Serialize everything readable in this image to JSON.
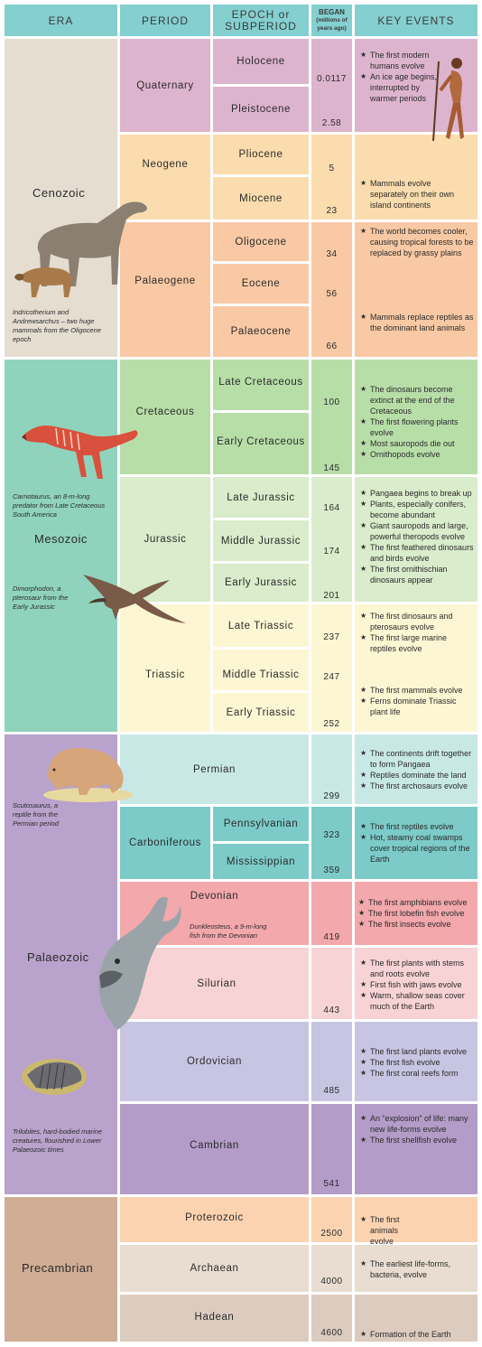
{
  "header": {
    "era": "ERA",
    "period": "PERIOD",
    "epoch_line1": "EPOCH or",
    "epoch_line2": "SUBPERIOD",
    "began_line1": "BEGAN",
    "began_line2": "(millions of",
    "began_line3": "years ago)",
    "events": "KEY EVENTS"
  },
  "eras": {
    "cenozoic": "Cenozoic",
    "mesozoic": "Mesozoic",
    "palaeozoic": "Palaeozoic",
    "precambrian": "Precambrian"
  },
  "periods": {
    "quaternary": "Quaternary",
    "neogene": "Neogene",
    "palaeogene": "Palaeogene",
    "cretaceous": "Cretaceous",
    "jurassic": "Jurassic",
    "triassic": "Triassic",
    "permian": "Permian",
    "carboniferous": "Carboniferous",
    "devonian": "Devonian",
    "silurian": "Silurian",
    "ordovician": "Ordovician",
    "cambrian": "Cambrian",
    "proterozoic": "Proterozoic",
    "archaean": "Archaean",
    "hadean": "Hadean"
  },
  "epochs": {
    "holocene": "Holocene",
    "pleistocene": "Pleistocene",
    "pliocene": "Pliocene",
    "miocene": "Miocene",
    "oligocene": "Oligocene",
    "eocene": "Eocene",
    "palaeocene": "Palaeocene",
    "late_cretaceous": "Late Cretaceous",
    "early_cretaceous": "Early Cretaceous",
    "late_jurassic": "Late Jurassic",
    "middle_jurassic": "Middle Jurassic",
    "early_jurassic": "Early Jurassic",
    "late_triassic": "Late Triassic",
    "middle_triassic": "Middle Triassic",
    "early_triassic": "Early Triassic",
    "pennsylvanian": "Pennsylvanian",
    "mississippian": "Mississippian"
  },
  "began": {
    "holocene": "0.0117",
    "pleistocene": "2.58",
    "pliocene": "5",
    "miocene": "23",
    "oligocene": "34",
    "eocene": "56",
    "palaeocene": "66",
    "late_cretaceous": "100",
    "early_cretaceous": "145",
    "late_jurassic": "164",
    "middle_jurassic": "174",
    "early_jurassic": "201",
    "late_triassic": "237",
    "middle_triassic": "247",
    "early_triassic": "252",
    "permian": "299",
    "pennsylvanian": "323",
    "mississippian": "359",
    "devonian": "419",
    "silurian": "443",
    "ordovician": "485",
    "cambrian": "541",
    "proterozoic": "2500",
    "archaean": "4000",
    "hadean": "4600"
  },
  "events": {
    "quaternary": [
      "The first modern humans evolve",
      "An ice age begins, interrupted by warmer periods"
    ],
    "neogene": [
      "Mammals evolve separately on their own island continents"
    ],
    "oligocene": [
      "The world becomes cooler, causing tropical forests to be replaced by grassy plains"
    ],
    "palaeocene": [
      "Mammals replace reptiles as the dominant land animals"
    ],
    "cretaceous": [
      "The dinosaurs become extinct at the end of the Cretaceous",
      "The first flowering plants evolve",
      "Most sauropods die out",
      "Ornithopods evolve"
    ],
    "jurassic": [
      "Pangaea begins to break up",
      "Plants, especially conifers, become abundant",
      "Giant sauropods and large, powerful theropods evolve",
      "The first feathered dinosaurs and birds evolve",
      "The first ornithischian dinosaurs appear"
    ],
    "late_triassic": [
      "The first dinosaurs and pterosaurs evolve",
      "The first large marine reptiles evolve"
    ],
    "early_triassic": [
      "The first mammals evolve",
      "Ferns dominate Triassic plant life"
    ],
    "permian": [
      "The continents drift together to form Pangaea",
      "Reptiles dominate the land",
      "The first archosaurs evolve"
    ],
    "carboniferous": [
      "The first reptiles evolve",
      "Hot, steamy coal swamps cover tropical regions of the Earth"
    ],
    "devonian": [
      "The first amphibians evolve",
      "The first lobefin fish evolve",
      "The first insects evolve"
    ],
    "silurian": [
      "The first plants with stems and roots evolve",
      "First fish with jaws evolve",
      "Warm, shallow seas cover much of the Earth"
    ],
    "ordovician": [
      "The first land plants evolve",
      "The first fish evolve",
      "The first coral reefs form"
    ],
    "cambrian": [
      "An “explosion” of life: many new life-forms evolve",
      "The first shellfish evolve"
    ],
    "proterozoic": [
      "The first animals evolve"
    ],
    "archaean": [
      "The earliest life-forms, bacteria, evolve"
    ],
    "hadean": [
      "Formation of the Earth"
    ]
  },
  "captions": {
    "indricotherium": "Indricotherium and Andrewsarchus – two huge mammals from the Oligocene epoch",
    "carnotaurus": "Carnotaurus, an 8-m-long predator from Late Cretaceous South America",
    "dimorphodon": "Dimorphodon, a pterosaur from the Early Jurassic",
    "scutosaurus": "Scutosaurus, a reptile from the Permian period",
    "dunkleosteus": "Dunkleosteus, a 9-m-long fish from the Devonian",
    "trilobites": "Trilobites, hard-bodied marine creatures, flourished in Lower Palaeozoic times"
  },
  "colors": {
    "header": "#84cfd0",
    "cenozoic_era": "#e4ddd0",
    "quaternary": "#ddb4cd",
    "neogene": "#fbdcae",
    "palaeogene": "#f8c9a4",
    "mesozoic_era": "#8fd3bc",
    "cretaceous": "#b8dea8",
    "jurassic": "#d9eccb",
    "triassic": "#fdf6d3",
    "palaeozoic_era": "#b9a2cb",
    "permian": "#c8e8e6",
    "carboniferous": "#7ccbc9",
    "devonian": "#f3a8ac",
    "silurian": "#f8d3d5",
    "ordovician": "#c8c5e2",
    "cambrian": "#b49cc8",
    "precambrian_era": "#d0ad95",
    "proterozoic": "#fcd3b1",
    "archaean": "#e8ddd0",
    "hadean": "#dccbbf"
  }
}
